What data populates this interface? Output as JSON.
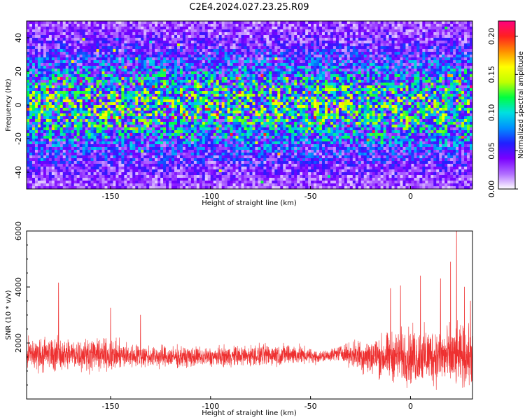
{
  "figure": {
    "title": "C2E4.2024.027.23.25.R09"
  },
  "chart_data": [
    {
      "type": "heatmap",
      "xlabel": "Height of straight line (km)",
      "ylabel": "Frequency (Hz)",
      "xlim": [
        -192,
        31
      ],
      "ylim": [
        -50,
        50
      ],
      "x_ticks": [
        -150,
        -100,
        -50,
        0
      ],
      "y_ticks": [
        -40,
        -20,
        0,
        20,
        40
      ],
      "colorbar": {
        "label": "Normalized spectral amplitude",
        "range": [
          0,
          0.22
        ],
        "ticks": [
          "0.00",
          "0.05",
          "0.10",
          "0.15",
          "0.20"
        ],
        "tick_values": [
          0,
          0.05,
          0.1,
          0.15,
          0.2
        ],
        "colors": [
          "#ffffff",
          "#b06cff",
          "#7a00ff",
          "#2020ff",
          "#0090ff",
          "#00e0e0",
          "#00ff40",
          "#c0ff00",
          "#ffff00",
          "#ff9000",
          "#ff2020",
          "#ff0080"
        ]
      },
      "amplitude_profile": {
        "description_free": true,
        "center_level": 0.09,
        "edge_level": 0.02,
        "band_halfwidth_hz": 30
      }
    },
    {
      "type": "line",
      "xlabel": "Height of straight line (km)",
      "ylabel": "SNR (10 * v/v)",
      "xlim": [
        -192,
        31
      ],
      "ylim": [
        0,
        6000
      ],
      "x_ticks": [
        -150,
        -100,
        -50,
        0
      ],
      "y_ticks": [
        2000,
        4000,
        6000
      ],
      "series": [
        {
          "color": "#ee3030",
          "envelope": {
            "x": [
              -192,
              -180,
              -160,
              -150,
              -140,
              -120,
              -100,
              -80,
              -60,
              -45,
              -35,
              -25,
              -15,
              -5,
              0,
              10,
              20,
              31
            ],
            "mean": [
              1600,
              1600,
              1600,
              1550,
              1550,
              1500,
              1500,
              1550,
              1600,
              1500,
              1650,
              1550,
              1500,
              1550,
              1500,
              1550,
              1500,
              1500
            ],
            "amplitude": [
              700,
              700,
              650,
              650,
              500,
              450,
              400,
              450,
              450,
              250,
              300,
              700,
              900,
              1100,
              1200,
              1200,
              1300,
              1200
            ],
            "spikes": [
              [
                -176,
                4150
              ],
              [
                -150,
                3250
              ],
              [
                -135,
                3000
              ],
              [
                -10,
                3950
              ],
              [
                -5,
                4050
              ],
              [
                5,
                4400
              ],
              [
                15,
                4300
              ],
              [
                20,
                4900
              ],
              [
                23,
                6000
              ],
              [
                27,
                4000
              ],
              [
                30,
                3500
              ]
            ]
          }
        }
      ]
    }
  ]
}
